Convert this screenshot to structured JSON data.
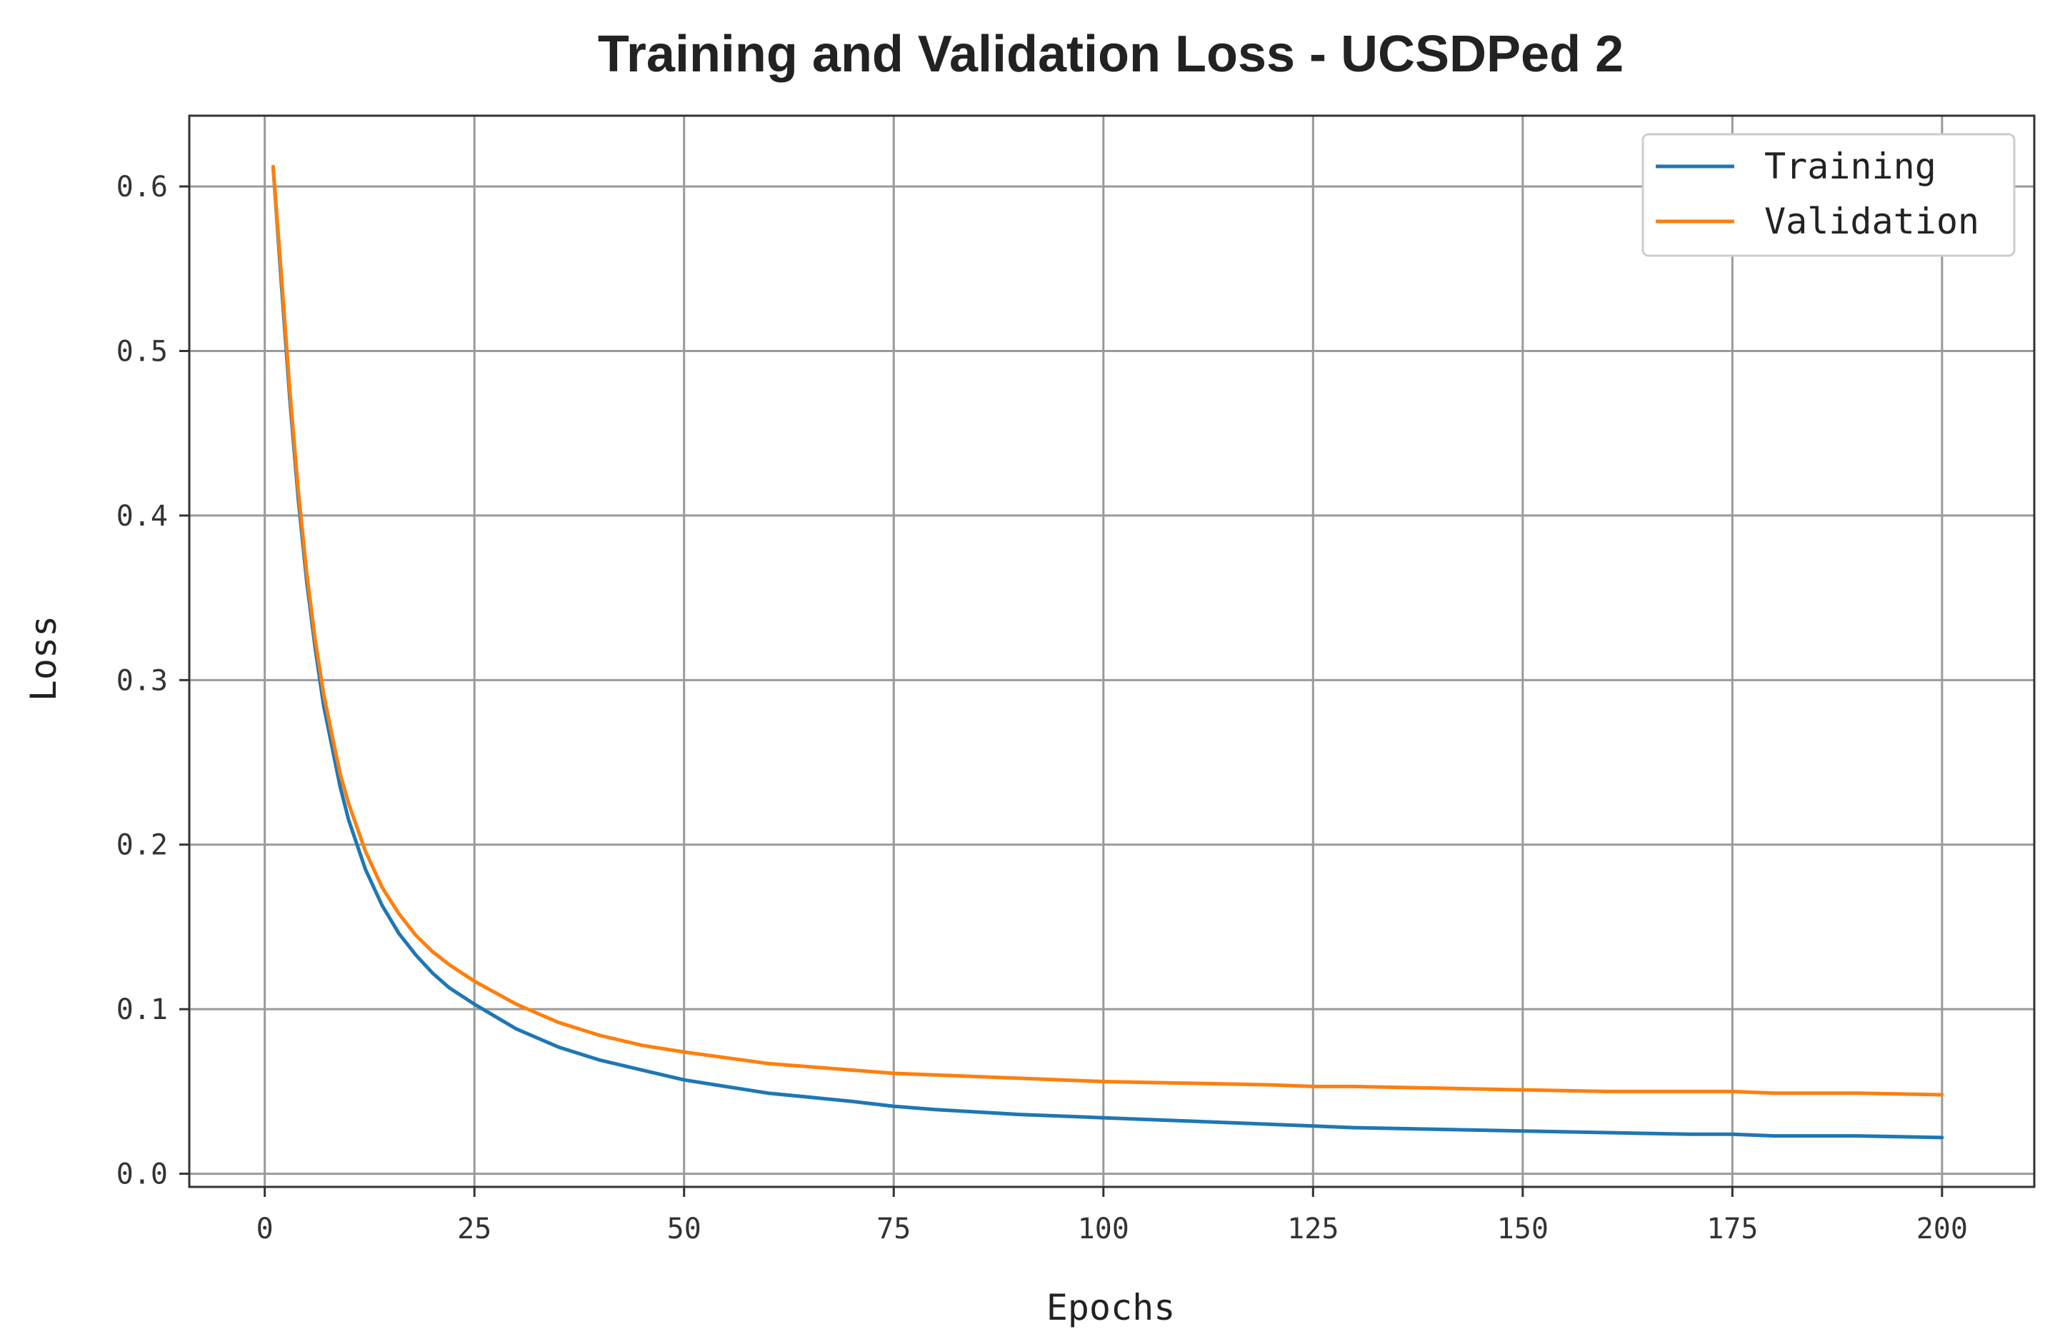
{
  "chart_data": {
    "type": "line",
    "title": "Training and Validation Loss - UCSDPed 2",
    "xlabel": "Epochs",
    "ylabel": "Loss",
    "xlim": [
      -9,
      211
    ],
    "ylim": [
      -0.008,
      0.643
    ],
    "xticks": [
      0,
      25,
      50,
      75,
      100,
      125,
      150,
      175,
      200
    ],
    "xtick_labels": [
      "0",
      "25",
      "50",
      "75",
      "100",
      "125",
      "150",
      "175",
      "200"
    ],
    "yticks": [
      0.0,
      0.1,
      0.2,
      0.3,
      0.4,
      0.5,
      0.6
    ],
    "ytick_labels": [
      "0.0",
      "0.1",
      "0.2",
      "0.3",
      "0.4",
      "0.5",
      "0.6"
    ],
    "grid": true,
    "legend_position": "top-right",
    "x": [
      1,
      2,
      3,
      4,
      5,
      6,
      7,
      8,
      9,
      10,
      12,
      14,
      16,
      18,
      20,
      22,
      25,
      30,
      35,
      40,
      45,
      50,
      60,
      70,
      75,
      80,
      90,
      100,
      110,
      120,
      125,
      130,
      140,
      150,
      160,
      170,
      175,
      180,
      190,
      200
    ],
    "series": [
      {
        "name": "Training",
        "color": "#1f77b4",
        "values": [
          0.612,
          0.54,
          0.47,
          0.41,
          0.36,
          0.32,
          0.285,
          0.26,
          0.235,
          0.215,
          0.185,
          0.163,
          0.146,
          0.133,
          0.122,
          0.113,
          0.103,
          0.088,
          0.077,
          0.069,
          0.063,
          0.057,
          0.049,
          0.044,
          0.041,
          0.039,
          0.036,
          0.034,
          0.032,
          0.03,
          0.029,
          0.028,
          0.027,
          0.026,
          0.025,
          0.024,
          0.024,
          0.023,
          0.023,
          0.022
        ]
      },
      {
        "name": "Validation",
        "color": "#ff7f0e",
        "values": [
          0.612,
          0.545,
          0.475,
          0.415,
          0.365,
          0.325,
          0.292,
          0.267,
          0.243,
          0.225,
          0.196,
          0.174,
          0.158,
          0.145,
          0.135,
          0.127,
          0.117,
          0.103,
          0.092,
          0.084,
          0.078,
          0.074,
          0.067,
          0.063,
          0.061,
          0.06,
          0.058,
          0.056,
          0.055,
          0.054,
          0.053,
          0.053,
          0.052,
          0.051,
          0.05,
          0.05,
          0.05,
          0.049,
          0.049,
          0.048
        ]
      }
    ]
  }
}
